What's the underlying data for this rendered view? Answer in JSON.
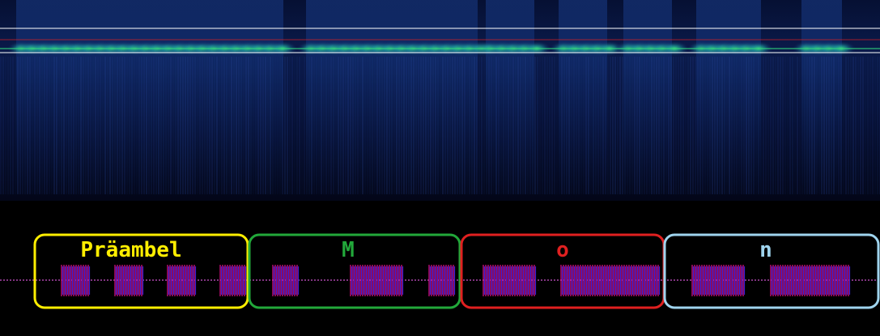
{
  "spectrogram": {
    "background": "#050a24",
    "trace_color": "#2fd27a",
    "marker_line_color": "#ffffff",
    "center_line_color": "#e02020"
  },
  "timeline": {
    "baseline_color": "#ff66ff",
    "burst_color_a": "#e0108a",
    "burst_color_b": "#3a1fd0"
  },
  "segments": [
    {
      "label": "Präambel",
      "color": "#ffee00",
      "bursts": 4
    },
    {
      "label": "M",
      "color": "#22a83a",
      "bursts": 3
    },
    {
      "label": "o",
      "color": "#e02020",
      "bursts": 2
    },
    {
      "label": "n",
      "color": "#9fd4ee",
      "bursts": 2
    }
  ]
}
